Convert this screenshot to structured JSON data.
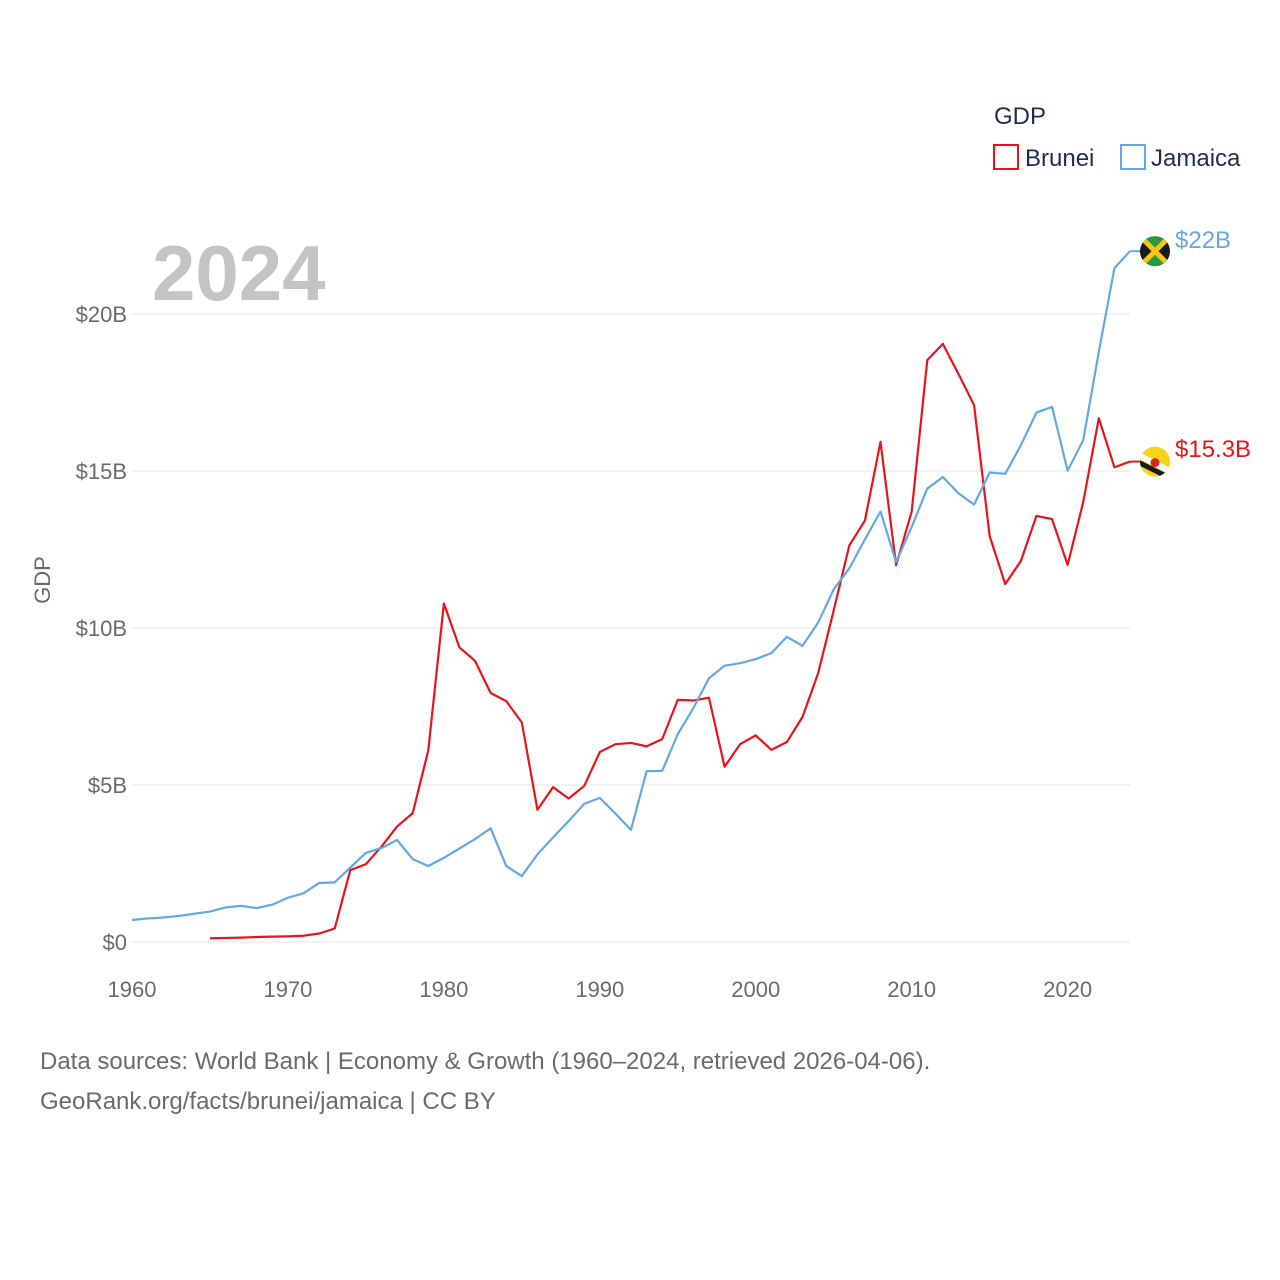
{
  "chart_data": {
    "type": "line",
    "title": "",
    "year_label": "2024",
    "ylabel": "GDP",
    "xlabel": "",
    "xlim": [
      1960,
      2024
    ],
    "ylim": [
      0,
      20000000000
    ],
    "x_ticks": [
      1960,
      1970,
      1980,
      1990,
      2000,
      2010,
      2020
    ],
    "x_tick_labels": [
      "1960",
      "1970",
      "1980",
      "1990",
      "2000",
      "2010",
      "2020"
    ],
    "y_ticks": [
      0,
      5000000000,
      10000000000,
      15000000000,
      20000000000
    ],
    "y_tick_labels": [
      "$0",
      "$5B",
      "$10B",
      "$15B",
      "$20B"
    ],
    "grid": true,
    "legend": {
      "title": "GDP",
      "position": "top-right"
    },
    "series": [
      {
        "name": "Brunei",
        "color": "#e8141a",
        "end_label": "$15.3B",
        "flag_icon": "brunei-flag-icon",
        "x": [
          1965,
          1966,
          1967,
          1968,
          1969,
          1970,
          1971,
          1972,
          1973,
          1974,
          1975,
          1976,
          1977,
          1978,
          1979,
          1980,
          1981,
          1982,
          1983,
          1984,
          1985,
          1986,
          1987,
          1988,
          1989,
          1990,
          1991,
          1992,
          1993,
          1994,
          1995,
          1996,
          1997,
          1998,
          1999,
          2000,
          2001,
          2002,
          2003,
          2004,
          2005,
          2006,
          2007,
          2008,
          2009,
          2010,
          2011,
          2012,
          2013,
          2014,
          2015,
          2016,
          2017,
          2018,
          2019,
          2020,
          2021,
          2022,
          2023,
          2024
        ],
        "values": [
          0.12,
          0.13,
          0.14,
          0.16,
          0.17,
          0.18,
          0.2,
          0.27,
          0.43,
          2.29,
          2.48,
          3.04,
          3.68,
          4.1,
          6.1,
          10.78,
          9.38,
          8.95,
          7.93,
          7.67,
          6.99,
          4.21,
          4.93,
          4.57,
          4.97,
          6.05,
          6.3,
          6.34,
          6.23,
          6.46,
          7.71,
          7.69,
          7.78,
          5.58,
          6.3,
          6.58,
          6.12,
          6.37,
          7.17,
          8.56,
          10.56,
          12.63,
          13.42,
          15.93,
          12.0,
          13.71,
          18.53,
          19.05,
          18.09,
          17.1,
          12.93,
          11.4,
          12.13,
          13.57,
          13.47,
          12.01,
          14.01,
          16.68,
          15.12,
          15.3
        ]
      },
      {
        "name": "Jamaica",
        "color": "#64a8e6",
        "end_label": "$22B",
        "flag_icon": "jamaica-flag-icon",
        "x": [
          1960,
          1961,
          1962,
          1963,
          1964,
          1965,
          1966,
          1967,
          1968,
          1969,
          1970,
          1971,
          1972,
          1973,
          1974,
          1975,
          1976,
          1977,
          1978,
          1979,
          1980,
          1981,
          1982,
          1983,
          1984,
          1985,
          1986,
          1987,
          1988,
          1989,
          1990,
          1991,
          1992,
          1993,
          1994,
          1995,
          1996,
          1997,
          1998,
          1999,
          2000,
          2001,
          2002,
          2003,
          2004,
          2005,
          2006,
          2007,
          2008,
          2009,
          2010,
          2011,
          2012,
          2013,
          2014,
          2015,
          2016,
          2017,
          2018,
          2019,
          2020,
          2021,
          2022,
          2023,
          2024
        ],
        "values": [
          0.7,
          0.75,
          0.78,
          0.83,
          0.9,
          0.97,
          1.1,
          1.15,
          1.08,
          1.19,
          1.41,
          1.55,
          1.88,
          1.9,
          2.37,
          2.84,
          2.99,
          3.25,
          2.64,
          2.42,
          2.68,
          2.98,
          3.28,
          3.62,
          2.42,
          2.1,
          2.79,
          3.33,
          3.85,
          4.4,
          4.59,
          4.09,
          3.57,
          5.44,
          5.45,
          6.62,
          7.45,
          8.4,
          8.8,
          8.88,
          9.01,
          9.2,
          9.72,
          9.43,
          10.17,
          11.23,
          11.9,
          12.82,
          13.71,
          12.1,
          13.22,
          14.44,
          14.81,
          14.29,
          13.93,
          14.95,
          14.91,
          15.82,
          16.86,
          17.04,
          15.01,
          15.98,
          18.79,
          21.46,
          22.0
        ]
      }
    ],
    "units_note": "values in billions USD"
  },
  "source": {
    "line1": "Data sources: World Bank | Economy & Growth (1960–2024, retrieved 2026-04-06).",
    "line2": "GeoRank.org/facts/brunei/jamaica | CC BY"
  }
}
